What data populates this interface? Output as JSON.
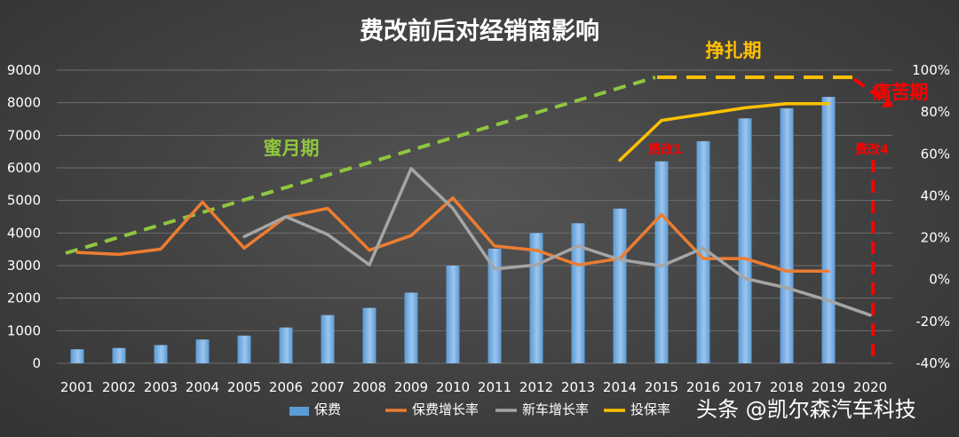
{
  "chart_data": {
    "type": "bar-line-combo",
    "title": "费改前后对经销商影响",
    "categories": [
      "2001",
      "2002",
      "2003",
      "2004",
      "2005",
      "2006",
      "2007",
      "2008",
      "2009",
      "2010",
      "2011",
      "2012",
      "2013",
      "2014",
      "2015",
      "2016",
      "2017",
      "2018",
      "2019",
      "2020"
    ],
    "y_left": {
      "min": 0,
      "max": 9000,
      "ticks": [
        "0",
        "1000",
        "2000",
        "3000",
        "4000",
        "5000",
        "6000",
        "7000",
        "8000",
        "9000"
      ]
    },
    "y_right": {
      "min": -40,
      "max": 100,
      "ticks": [
        "-40%",
        "-20%",
        "0%",
        "20%",
        "40%",
        "60%",
        "80%",
        "100%"
      ]
    },
    "grid": true,
    "legend_position": "bottom",
    "colors": {
      "bar": "#5b9bd5",
      "bar_light": "#9cc5ee",
      "premium_growth": "#ed7d31",
      "car_growth": "#a5a5a5",
      "invest_rate": "#ffc000",
      "honeymoon": "#8fc63f",
      "struggle": "#ffc000",
      "pain": "#ff0000"
    },
    "series": [
      {
        "name": "保费",
        "axis": "left",
        "kind": "bar",
        "values": [
          430,
          470,
          560,
          730,
          850,
          1100,
          1480,
          1700,
          2170,
          3000,
          3520,
          4000,
          4300,
          4750,
          6200,
          6820,
          7520,
          7830,
          8180,
          null
        ]
      },
      {
        "name": "保费增长率",
        "axis": "right",
        "kind": "line",
        "values": [
          13,
          12,
          14.5,
          37,
          15,
          30,
          34,
          14,
          21,
          39,
          16,
          14,
          7,
          10,
          31,
          10,
          10,
          4,
          4,
          null
        ]
      },
      {
        "name": "新车增长率",
        "axis": "right",
        "kind": "line",
        "values": [
          null,
          null,
          null,
          null,
          20.5,
          30,
          21.5,
          7,
          53,
          34,
          5,
          7,
          16,
          9.5,
          6.5,
          15,
          0.5,
          -4,
          -10,
          -17
        ]
      },
      {
        "name": "投保率",
        "axis": "right",
        "kind": "line",
        "values": [
          null,
          null,
          null,
          null,
          null,
          null,
          null,
          null,
          null,
          null,
          null,
          null,
          null,
          57,
          76,
          79,
          82,
          84,
          84,
          null
        ]
      }
    ],
    "annotations": {
      "honeymoon": "蜜月期",
      "struggle": "挣扎期",
      "pain": "痛苦期",
      "reform1": "费改1",
      "reform4": "费改4"
    }
  },
  "watermark": "头条 @凯尔森汽车科技"
}
